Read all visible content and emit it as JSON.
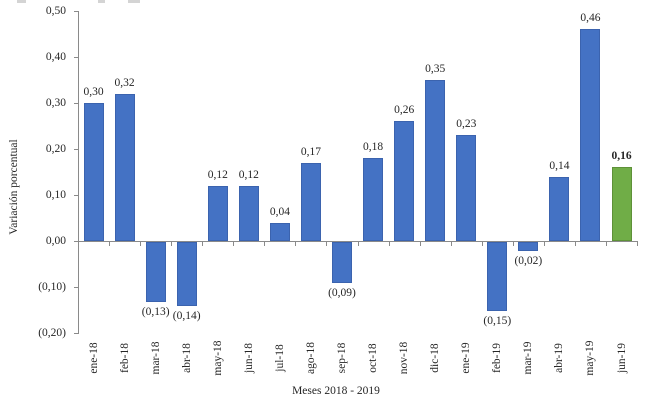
{
  "chart_data": {
    "type": "bar",
    "title": "",
    "xlabel": "Meses 2018 - 2019",
    "ylabel": "Variación porcentual",
    "categories": [
      "ene-18",
      "feb-18",
      "mar-18",
      "abr-18",
      "may-18",
      "jun-18",
      "jul-18",
      "ago-18",
      "sep-18",
      "oct-18",
      "nov-18",
      "dic-18",
      "ene-19",
      "feb-19",
      "mar-19",
      "abr-19",
      "may-19",
      "jun-19"
    ],
    "values": [
      0.3,
      0.32,
      -0.13,
      -0.14,
      0.12,
      0.12,
      0.04,
      0.17,
      -0.09,
      0.18,
      0.26,
      0.35,
      0.23,
      -0.15,
      -0.02,
      0.14,
      0.46,
      0.16
    ],
    "value_labels": [
      "0,30",
      "0,32",
      "(0,13)",
      "(0,14)",
      "0,12",
      "0,12",
      "0,04",
      "0,17",
      "(0,09)",
      "0,18",
      "0,26",
      "0,35",
      "0,23",
      "(0,15)",
      "(0,02)",
      "0,14",
      "0,46",
      "0,16"
    ],
    "highlight_index": 17,
    "ylim": [
      -0.2,
      0.5
    ],
    "grid": false,
    "legend": false,
    "y_ticks": [
      {
        "label": "0,50",
        "value": 0.5
      },
      {
        "label": "0,40",
        "value": 0.4
      },
      {
        "label": "0,30",
        "value": 0.3
      },
      {
        "label": "0,20",
        "value": 0.2
      },
      {
        "label": "0,10",
        "value": 0.1
      },
      {
        "label": "0,00",
        "value": 0.0
      },
      {
        "label": "(0,10)",
        "value": -0.1
      },
      {
        "label": "(0,20)",
        "value": -0.2
      }
    ],
    "colors": {
      "bar": "#4472C4",
      "bar_border": "#3B63AE",
      "bar_highlight": "#70AD47",
      "bar_highlight_border": "#5E9138",
      "axis": "#8A8A8A",
      "text": "#262626"
    }
  }
}
